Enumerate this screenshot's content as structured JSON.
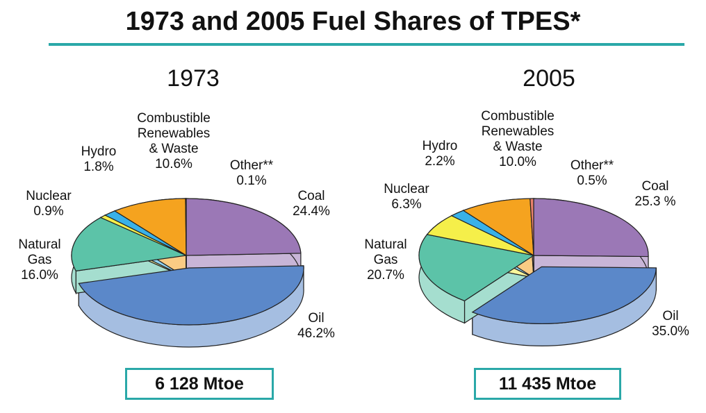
{
  "title": "1973 and 2005 Fuel Shares of TPES*",
  "chart_data": [
    {
      "type": "pie",
      "title": "1973",
      "total": "6 128 Mtoe",
      "explode": "Oil",
      "categories": [
        "Coal",
        "Oil",
        "Natural Gas",
        "Nuclear",
        "Hydro",
        "Combustible Renewables & Waste",
        "Other**"
      ],
      "values": [
        24.4,
        46.2,
        16.0,
        0.9,
        1.8,
        10.6,
        0.1
      ],
      "value_labels": [
        "24.4%",
        "46.2%",
        "16.0%",
        "0.9%",
        "1.8%",
        "10.6%",
        "0.1%"
      ],
      "colors": [
        "#9b78b6",
        "#5b88c9",
        "#5cc3a8",
        "#f5ef4a",
        "#39b1e8",
        "#f5a31f",
        "#e8806c"
      ]
    },
    {
      "type": "pie",
      "title": "2005",
      "total": "11 435 Mtoe",
      "explode": "Oil",
      "categories": [
        "Coal",
        "Oil",
        "Natural Gas",
        "Nuclear",
        "Hydro",
        "Combustible Renewables & Waste",
        "Other**"
      ],
      "values": [
        25.3,
        35.0,
        20.7,
        6.3,
        2.2,
        10.0,
        0.5
      ],
      "value_labels": [
        "25.3 %",
        "35.0%",
        "20.7%",
        "6.3%",
        "2.2%",
        "10.0%",
        "0.5%"
      ],
      "colors": [
        "#9b78b6",
        "#5b88c9",
        "#5cc3a8",
        "#f5ef4a",
        "#39b1e8",
        "#f5a31f",
        "#e8806c"
      ]
    }
  ]
}
